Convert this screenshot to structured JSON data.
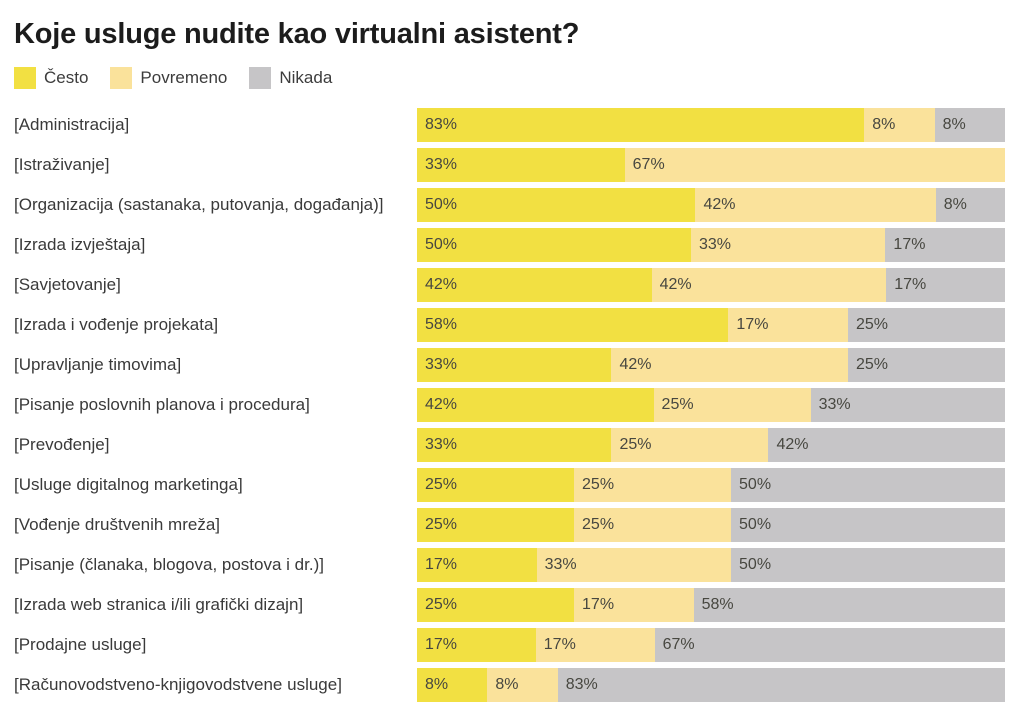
{
  "chart_data": {
    "type": "bar",
    "orientation": "horizontal-stacked",
    "title": "Koje usluge nudite kao virtualni asistent?",
    "legend_position": "top",
    "value_suffix": "%",
    "xlim": [
      0,
      100
    ],
    "grid": false,
    "categories": [
      "[Administracija]",
      "[Istraživanje]",
      "[Organizacija (sastanaka, putovanja, događanja)]",
      "[Izrada izvještaja]",
      "[Savjetovanje]",
      "[Izrada i vođenje projekata]",
      "[Upravljanje timovima]",
      "[Pisanje poslovnih planova i procedura]",
      "[Prevođenje]",
      "[Usluge digitalnog marketinga]",
      "[Vođenje društvenih mreža]",
      "[Pisanje (članaka, blogova, postova i dr.)]",
      "[Izrada web stranica i/ili grafički dizajn]",
      "[Prodajne usluge]",
      "[Računovodstveno-knjigovodstvene usluge]"
    ],
    "series": [
      {
        "name": "Često",
        "color": "#F2E042",
        "values": [
          83,
          33,
          50,
          50,
          42,
          58,
          33,
          42,
          33,
          25,
          25,
          17,
          25,
          17,
          8
        ]
      },
      {
        "name": "Povremeno",
        "color": "#FAE29B",
        "values": [
          8,
          67,
          42,
          33,
          42,
          17,
          42,
          25,
          25,
          25,
          25,
          33,
          17,
          17,
          8
        ]
      },
      {
        "name": "Nikada",
        "color": "#C6C5C7",
        "values": [
          8,
          0,
          8,
          17,
          17,
          25,
          25,
          33,
          42,
          50,
          50,
          50,
          58,
          67,
          83
        ]
      }
    ]
  },
  "colors": {
    "background": "#FFFFFF",
    "title_text": "#1C1C1C",
    "category_text": "#3A3A3A",
    "value_text": "#474740"
  }
}
